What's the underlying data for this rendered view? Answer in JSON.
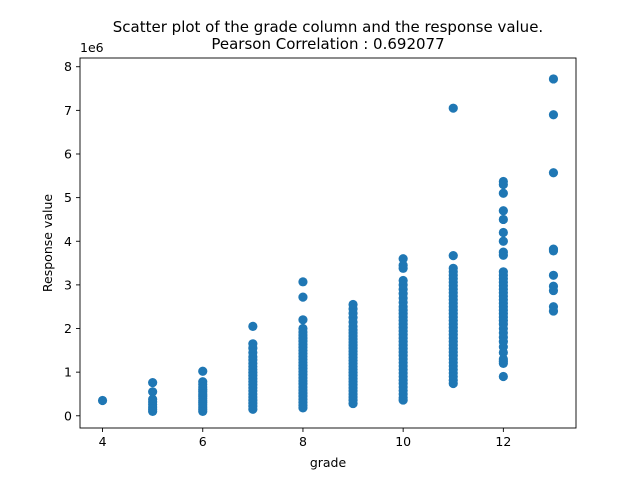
{
  "chart_data": {
    "type": "scatter",
    "title_lines": [
      "Scatter plot of the grade column and the response value.",
      "Pearson Correlation : 0.692077"
    ],
    "xlabel": "grade",
    "ylabel": "Response value",
    "offset_text": "1e6",
    "xlim": [
      3.55,
      13.45
    ],
    "ylim": [
      -0.28,
      8.2
    ],
    "xticks": [
      4,
      6,
      8,
      10,
      12
    ],
    "xtick_labels": [
      "4",
      "6",
      "8",
      "10",
      "12"
    ],
    "yticks": [
      0,
      1,
      2,
      3,
      4,
      5,
      6,
      7,
      8
    ],
    "ytick_labels": [
      "0",
      "1",
      "2",
      "3",
      "4",
      "5",
      "6",
      "7",
      "8"
    ],
    "marker_color": "#1f77b4",
    "series": [
      {
        "points_by_grade": [
          {
            "x": 4,
            "y": [
              0.35
            ]
          },
          {
            "x": 5,
            "y": [
              0.76,
              0.55,
              0.38,
              0.32,
              0.26,
              0.2,
              0.15,
              0.1
            ]
          },
          {
            "x": 6,
            "y": [
              1.02,
              0.78,
              0.72,
              0.66,
              0.6,
              0.55,
              0.5,
              0.45,
              0.4,
              0.35,
              0.3,
              0.25,
              0.2,
              0.15,
              0.1
            ]
          },
          {
            "x": 7,
            "y": [
              2.05,
              1.65,
              1.55,
              1.45,
              1.35,
              1.28,
              1.2,
              1.13,
              1.06,
              0.99,
              0.92,
              0.85,
              0.78,
              0.71,
              0.64,
              0.57,
              0.5,
              0.43,
              0.36,
              0.29,
              0.22,
              0.15
            ]
          },
          {
            "x": 8,
            "y": [
              3.07,
              2.72,
              2.2,
              2.0,
              1.92,
              1.85,
              1.78,
              1.71,
              1.64,
              1.57,
              1.5,
              1.43,
              1.36,
              1.29,
              1.22,
              1.15,
              1.08,
              1.01,
              0.94,
              0.87,
              0.8,
              0.73,
              0.66,
              0.59,
              0.52,
              0.45,
              0.38,
              0.31,
              0.24,
              0.18
            ]
          },
          {
            "x": 9,
            "y": [
              2.55,
              2.45,
              2.35,
              2.25,
              2.15,
              2.05,
              1.97,
              1.9,
              1.83,
              1.76,
              1.69,
              1.62,
              1.55,
              1.48,
              1.41,
              1.34,
              1.27,
              1.2,
              1.13,
              1.06,
              0.99,
              0.92,
              0.85,
              0.78,
              0.71,
              0.64,
              0.57,
              0.5,
              0.43,
              0.36,
              0.28
            ]
          },
          {
            "x": 10,
            "y": [
              3.6,
              3.45,
              3.38,
              3.1,
              3.0,
              2.9,
              2.8,
              2.7,
              2.6,
              2.5,
              2.42,
              2.34,
              2.26,
              2.18,
              2.1,
              2.02,
              1.94,
              1.86,
              1.78,
              1.7,
              1.62,
              1.54,
              1.46,
              1.38,
              1.3,
              1.22,
              1.14,
              1.06,
              0.98,
              0.9,
              0.82,
              0.74,
              0.66,
              0.58,
              0.5,
              0.42,
              0.36
            ]
          },
          {
            "x": 11,
            "y": [
              7.05,
              3.67,
              3.38,
              3.3,
              3.22,
              3.14,
              3.06,
              2.98,
              2.9,
              2.82,
              2.74,
              2.66,
              2.58,
              2.5,
              2.42,
              2.34,
              2.26,
              2.18,
              2.1,
              2.02,
              1.94,
              1.86,
              1.78,
              1.7,
              1.62,
              1.54,
              1.46,
              1.38,
              1.3,
              1.22,
              1.14,
              1.06,
              0.98,
              0.9,
              0.82,
              0.74
            ]
          },
          {
            "x": 12,
            "y": [
              5.37,
              5.3,
              5.1,
              4.7,
              4.5,
              4.2,
              4.0,
              3.75,
              3.68,
              3.3,
              3.22,
              3.14,
              3.06,
              2.98,
              2.9,
              2.82,
              2.74,
              2.66,
              2.58,
              2.5,
              2.42,
              2.34,
              2.26,
              2.18,
              2.1,
              2.0,
              1.9,
              1.8,
              1.7,
              1.58,
              1.45,
              1.3,
              1.25,
              1.2,
              0.9
            ]
          },
          {
            "x": 13,
            "y": [
              7.72,
              6.9,
              5.57,
              3.82,
              3.78,
              3.22,
              2.97,
              2.87,
              2.5,
              2.4
            ]
          }
        ]
      }
    ]
  }
}
